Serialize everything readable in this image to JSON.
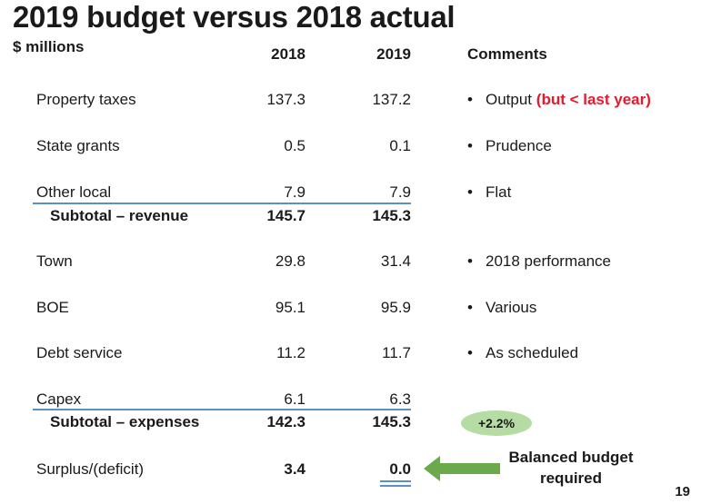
{
  "slide": {
    "title": "2019 budget versus 2018 actual",
    "units": "$ millions",
    "headers": {
      "col2018": "2018",
      "col2019": "2019",
      "comments": "Comments"
    },
    "rows": {
      "property_taxes": {
        "label": "Property taxes",
        "v2018": "137.3",
        "v2019": "137.2",
        "comment": "Output",
        "comment_note": "(but < last year)"
      },
      "state_grants": {
        "label": "State grants",
        "v2018": "0.5",
        "v2019": "0.1",
        "comment": "Prudence"
      },
      "other_local": {
        "label": "Other local",
        "v2018": "7.9",
        "v2019": "7.9",
        "comment": "Flat"
      },
      "subtotal_revenue": {
        "label": "Subtotal – revenue",
        "v2018": "145.7",
        "v2019": "145.3"
      },
      "town": {
        "label": "Town",
        "v2018": "29.8",
        "v2019": "31.4",
        "comment": "2018 performance"
      },
      "boe": {
        "label": "BOE",
        "v2018": "95.1",
        "v2019": "95.9",
        "comment": "Various"
      },
      "debt_service": {
        "label": "Debt service",
        "v2018": "11.2",
        "v2019": "11.7",
        "comment": "As scheduled"
      },
      "capex": {
        "label": "Capex",
        "v2018": "6.1",
        "v2019": "6.3"
      },
      "subtotal_expenses": {
        "label": "Subtotal – expenses",
        "v2018": "142.3",
        "v2019": "145.3"
      },
      "surplus": {
        "label": "Surplus/(deficit)",
        "v2018": "3.4",
        "v2019": "0.0"
      }
    },
    "bullet": "•",
    "growth_badge": "+2.2%",
    "callout": "Balanced budget required",
    "page_number": "19",
    "colors": {
      "accent_line": "#5b8fc7",
      "highlight_red": "#e8192c",
      "badge_green": "#b5dca3",
      "arrow_green": "#6aaa4a"
    }
  }
}
